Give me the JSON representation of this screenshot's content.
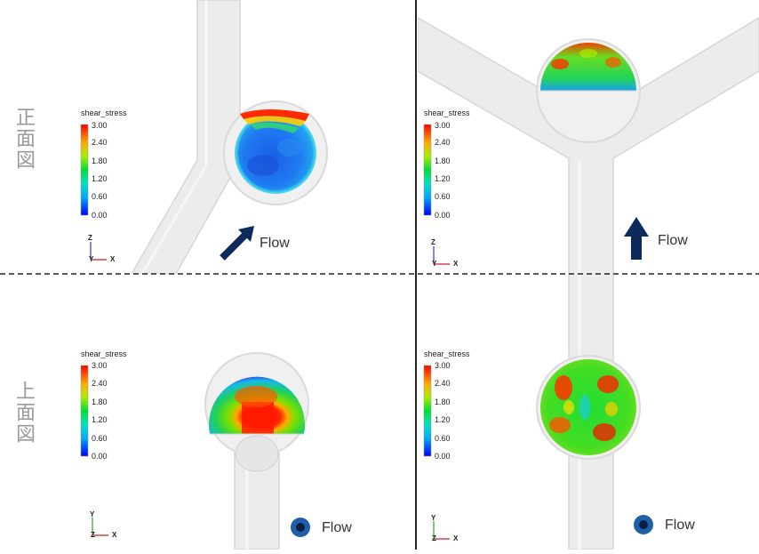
{
  "labels": {
    "front_view": "正面図",
    "top_view": "上面図"
  },
  "colorbar": {
    "title": "shear_stress",
    "ticks": [
      "3.00",
      "2.40",
      "1.80",
      "1.20",
      "0.60",
      "0.00"
    ]
  },
  "flow_label": "Flow",
  "axes": {
    "front": {
      "vertical": "Z",
      "horizontal": "X",
      "center": "Y"
    },
    "top": {
      "vertical": "Y",
      "horizontal": "X",
      "center": "Z"
    }
  },
  "colors": {
    "pipe_fill": "#ececec",
    "pipe_edge": "#d8d8d8",
    "arrow": "#0d2a5c",
    "flow_dot_outer": "#1f5fa8",
    "flow_dot_inner": "#0a1f3f",
    "divider": "#222222"
  }
}
